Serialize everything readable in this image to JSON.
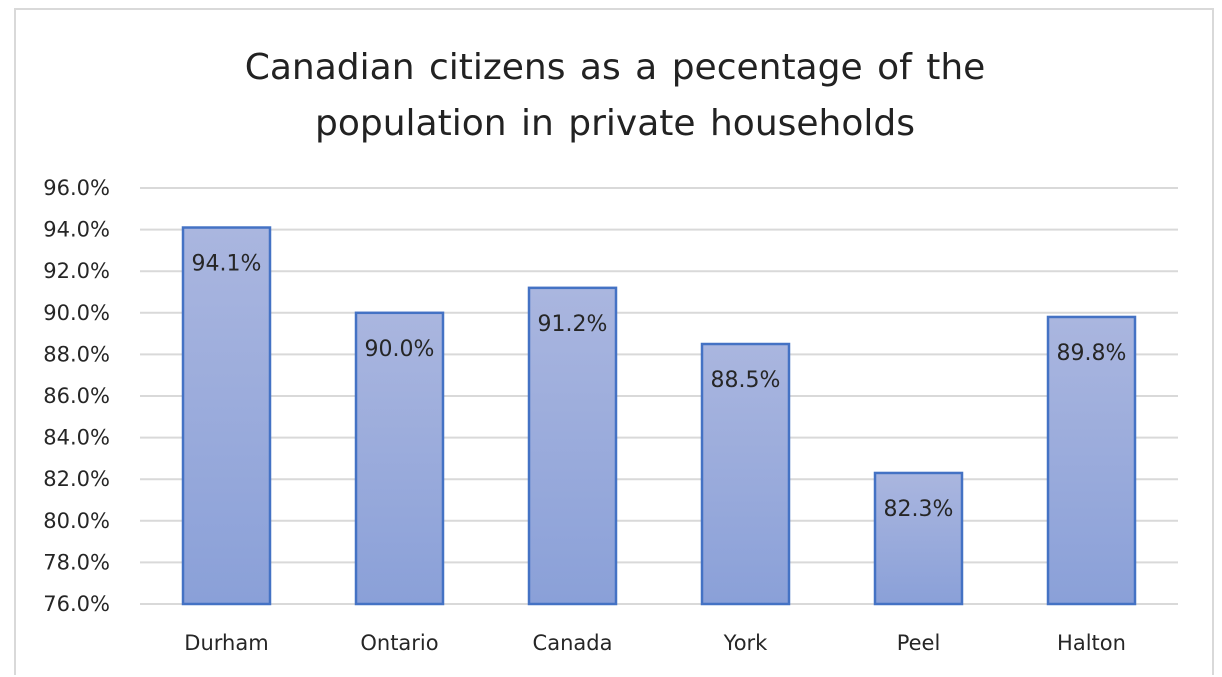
{
  "chart_data": {
    "type": "bar",
    "title": "Canadian  citizens  as  a  pecentage  of  the\npopulation  in  private  households",
    "categories": [
      "Durham",
      "Ontario",
      "Canada",
      "York",
      "Peel",
      "Halton"
    ],
    "values": [
      94.1,
      90.0,
      91.2,
      88.5,
      82.3,
      89.8
    ],
    "data_labels": [
      "94.1%",
      "90.0%",
      "91.2%",
      "88.5%",
      "82.3%",
      "89.8%"
    ],
    "ylim": [
      76.0,
      96.0
    ],
    "yticks": [
      "76.0%",
      "78.0%",
      "80.0%",
      "82.0%",
      "84.0%",
      "86.0%",
      "88.0%",
      "90.0%",
      "92.0%",
      "94.0%",
      "96.0%"
    ],
    "ytick_values": [
      76,
      78,
      80,
      82,
      84,
      86,
      88,
      90,
      92,
      94,
      96
    ],
    "grid": true,
    "legend": "none",
    "colors": {
      "bar_top": "#aab6df",
      "bar_bottom": "#8aa0d8",
      "bar_stroke": "#4472c4",
      "grid": "#d9d9d9"
    }
  }
}
